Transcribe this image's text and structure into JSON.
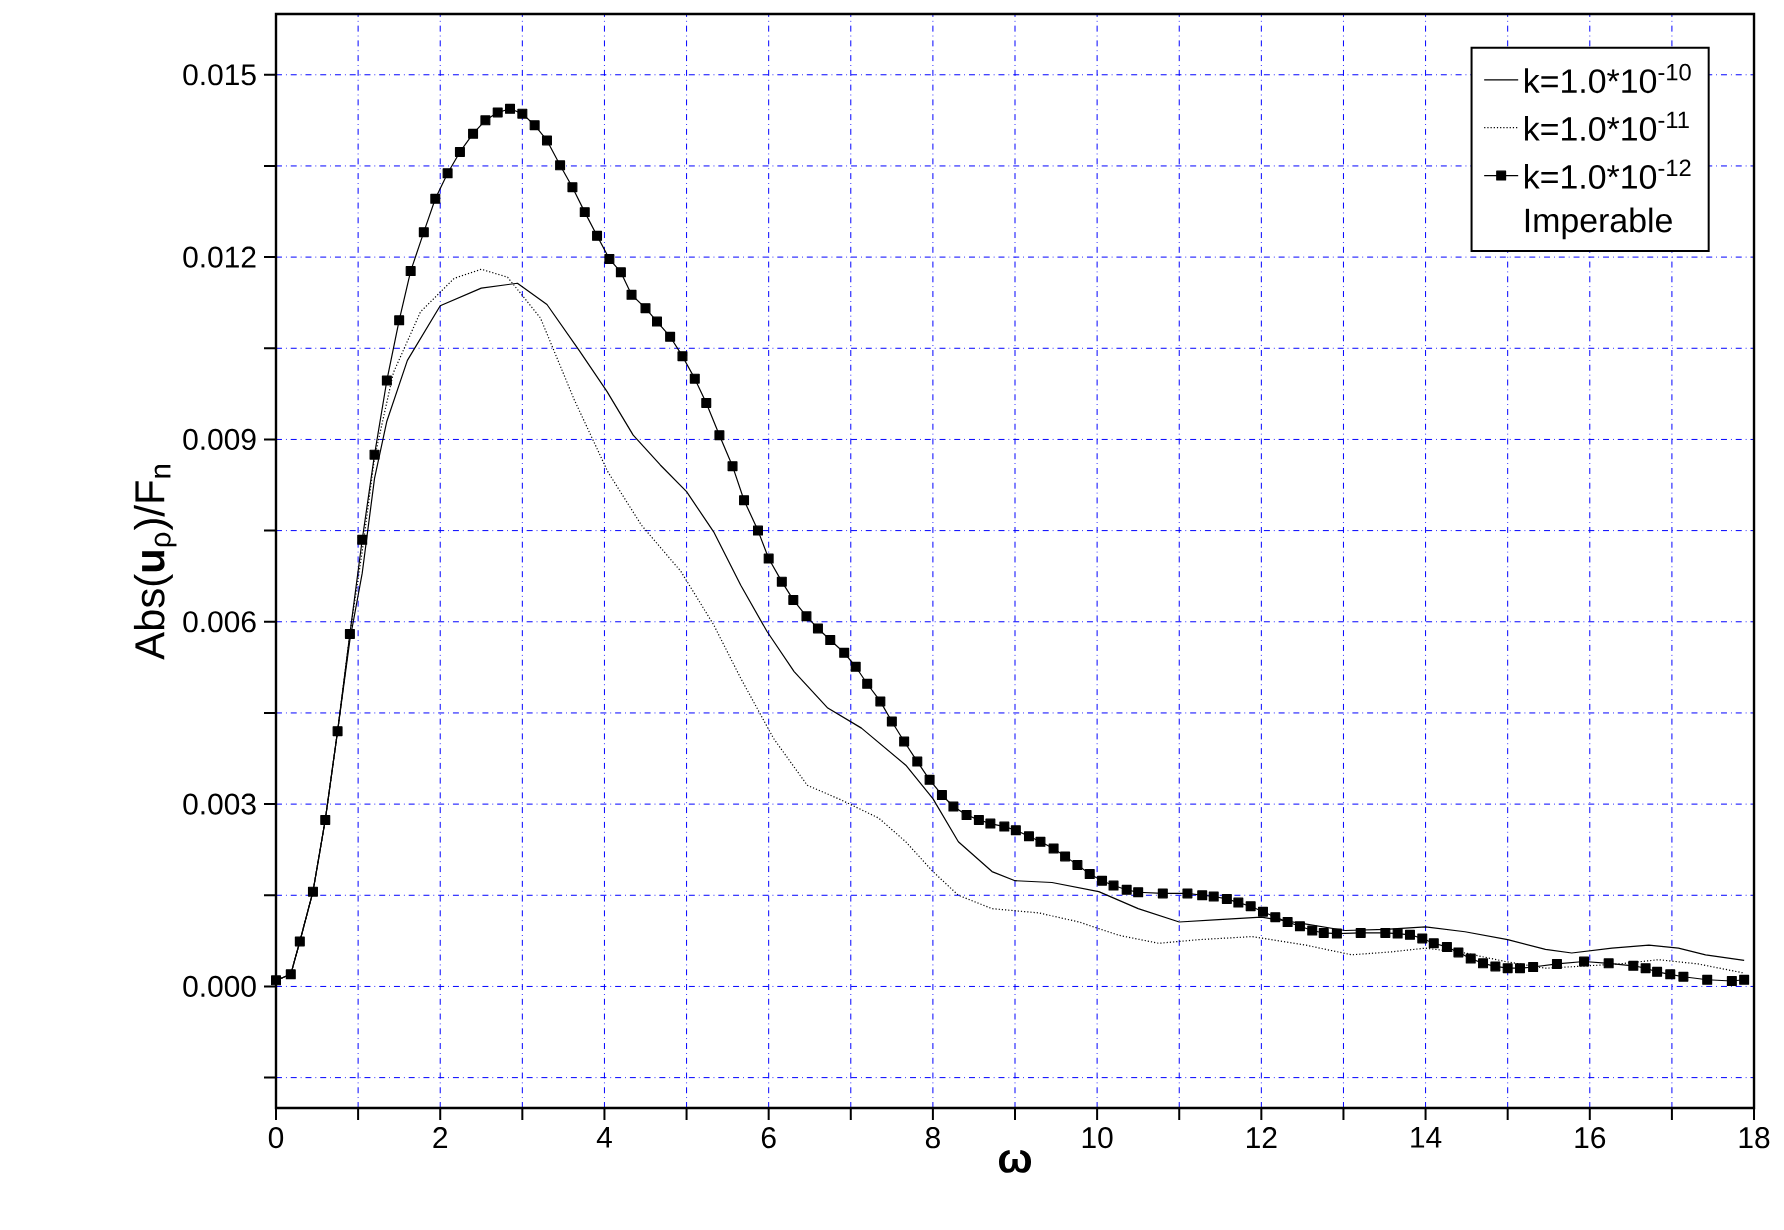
{
  "chart_data": {
    "type": "line",
    "xlabel": "**ω**",
    "ylabel": "Abs(**u**$_{ρ}$)/F$_{n}$",
    "annotations": [
      "Imperable"
    ],
    "xlim": [
      0,
      18
    ],
    "ylim": [
      -0.002,
      0.016
    ],
    "xticks": [
      0,
      {
        "value": 1,
        "label": null
      },
      2,
      {
        "value": 3,
        "label": null
      },
      4,
      {
        "value": 5,
        "label": null
      },
      6,
      {
        "value": 7,
        "label": null
      },
      8,
      {
        "value": 9,
        "label": null
      },
      10,
      {
        "value": 11,
        "label": null
      },
      12,
      {
        "value": 13,
        "label": null
      },
      14,
      {
        "value": 15,
        "label": null
      },
      16,
      {
        "value": 17,
        "label": null
      },
      18
    ],
    "yticks": [
      {
        "value": -0.0015,
        "label": null
      },
      {
        "value": 0,
        "label": "0.000"
      },
      {
        "value": 0.0015,
        "label": null
      },
      {
        "value": 0.003,
        "label": "0.003"
      },
      {
        "value": 0.0045,
        "label": null
      },
      {
        "value": 0.006,
        "label": "0.006"
      },
      {
        "value": 0.0075,
        "label": null
      },
      {
        "value": 0.009,
        "label": "0.009"
      },
      {
        "value": 0.0105,
        "label": null
      },
      {
        "value": 0.012,
        "label": "0.012"
      },
      {
        "value": 0.0135,
        "label": null
      },
      {
        "value": 0.015,
        "label": "0.015"
      }
    ],
    "grid": true,
    "legend": "top right",
    "series": [
      {
        "name": "k=1.0*10$^{-10}$",
        "color": "#000000",
        "line_style": "solid",
        "marker": "none",
        "x": [
          0,
          0.18,
          0.29,
          0.45,
          0.6,
          0.75,
          0.9,
          1.05,
          1.2,
          1.35,
          1.6,
          2.0,
          2.5,
          2.94,
          3.3,
          3.7,
          4.03,
          4.35,
          4.68,
          5.0,
          5.33,
          5.66,
          5.98,
          6.31,
          6.72,
          7.13,
          7.67,
          8.0,
          8.31,
          8.72,
          9.0,
          9.45,
          10.02,
          10.5,
          11.0,
          11.48,
          12.0,
          12.53,
          13.02,
          13.51,
          14.0,
          14.48,
          15.0,
          15.46,
          15.78,
          16.27,
          16.72,
          17.08,
          17.41,
          17.88
        ],
        "values": [
          0.0001,
          0.0002,
          0.00074,
          0.00156,
          0.00274,
          0.0042,
          0.0057,
          0.0068,
          0.00836,
          0.0093,
          0.0103,
          0.0112,
          0.01149,
          0.01157,
          0.01122,
          0.01045,
          0.00979,
          0.00907,
          0.00858,
          0.00814,
          0.00748,
          0.0066,
          0.00584,
          0.00518,
          0.00458,
          0.00425,
          0.00364,
          0.00309,
          0.00238,
          0.00189,
          0.00174,
          0.00171,
          0.00156,
          0.00128,
          0.00106,
          0.0011,
          0.00114,
          0.00103,
          0.00092,
          0.00094,
          0.00098,
          0.0009,
          0.00077,
          0.00061,
          0.00055,
          0.00063,
          0.00068,
          0.00063,
          0.00052,
          0.00043
        ]
      },
      {
        "name": "k=1.0*10$^{-11}$",
        "color": "#000000",
        "line_style": "dotted",
        "marker": "none",
        "x": [
          0,
          0.18,
          0.29,
          0.45,
          0.6,
          0.75,
          0.9,
          1.05,
          1.2,
          1.43,
          1.76,
          2.17,
          2.5,
          2.82,
          3.22,
          3.63,
          4.04,
          4.45,
          4.93,
          5.33,
          5.66,
          6.06,
          6.47,
          6.88,
          7.34,
          7.67,
          8.0,
          8.31,
          8.72,
          9.29,
          9.78,
          10.27,
          10.75,
          11.24,
          11.89,
          12.54,
          13.1,
          13.59,
          14.0,
          14.48,
          14.97,
          15.46,
          15.86,
          16.35,
          16.84,
          17.32,
          17.88
        ],
        "values": [
          0.0001,
          0.0002,
          0.00074,
          0.00156,
          0.00274,
          0.0042,
          0.0058,
          0.00716,
          0.0087,
          0.0101,
          0.0111,
          0.01165,
          0.0118,
          0.01167,
          0.011,
          0.00966,
          0.00847,
          0.00759,
          0.00683,
          0.00595,
          0.00507,
          0.00408,
          0.00331,
          0.00307,
          0.00277,
          0.00238,
          0.00189,
          0.0015,
          0.00128,
          0.00121,
          0.00106,
          0.00084,
          0.00071,
          0.00077,
          0.00082,
          0.00068,
          0.00052,
          0.00057,
          0.00063,
          0.00055,
          0.00041,
          0.0003,
          0.00033,
          0.00037,
          0.00044,
          0.00037,
          0.00022
        ]
      },
      {
        "name": "k=1.0*10$^{-12}$",
        "color": "#000000",
        "line_style": "solid",
        "marker": "square",
        "x": [
          0,
          0.18,
          0.29,
          0.45,
          0.6,
          0.75,
          0.9,
          1.05,
          1.2,
          1.35,
          1.5,
          1.64,
          1.8,
          1.94,
          2.09,
          2.24,
          2.4,
          2.55,
          2.7,
          2.85,
          3.0,
          3.15,
          3.3,
          3.46,
          3.61,
          3.76,
          3.91,
          4.06,
          4.2,
          4.33,
          4.5,
          4.64,
          4.8,
          4.95,
          5.1,
          5.24,
          5.4,
          5.56,
          5.7,
          5.87,
          6.0,
          6.16,
          6.3,
          6.46,
          6.6,
          6.75,
          6.92,
          7.06,
          7.2,
          7.36,
          7.5,
          7.65,
          7.81,
          7.96,
          8.11,
          8.25,
          8.41,
          8.56,
          8.7,
          8.87,
          9.01,
          9.17,
          9.31,
          9.47,
          9.61,
          9.76,
          9.91,
          10.06,
          10.2,
          10.36,
          10.5,
          10.8,
          11.1,
          11.28,
          11.42,
          11.58,
          11.72,
          11.87,
          12.02,
          12.17,
          12.32,
          12.47,
          12.62,
          12.76,
          12.92,
          13.21,
          13.51,
          13.66,
          13.81,
          13.96,
          14.1,
          14.26,
          14.4,
          14.55,
          14.7,
          14.85,
          15.0,
          15.15,
          15.31,
          15.6,
          15.93,
          16.23,
          16.53,
          16.68,
          16.82,
          16.98,
          17.14,
          17.43,
          17.73,
          17.88
        ],
        "values": [
          0.0001,
          0.0002,
          0.00074,
          0.00156,
          0.00274,
          0.0042,
          0.0058,
          0.00735,
          0.00875,
          0.00997,
          0.01096,
          0.01177,
          0.01241,
          0.01296,
          0.01338,
          0.01373,
          0.01403,
          0.01425,
          0.01438,
          0.01444,
          0.01436,
          0.01417,
          0.01392,
          0.01351,
          0.01315,
          0.01274,
          0.01235,
          0.01197,
          0.01175,
          0.01138,
          0.01116,
          0.01094,
          0.01069,
          0.01037,
          0.01,
          0.0096,
          0.00907,
          0.00856,
          0.008,
          0.0075,
          0.00704,
          0.00666,
          0.00636,
          0.00609,
          0.00589,
          0.0057,
          0.00549,
          0.00526,
          0.00498,
          0.00469,
          0.00436,
          0.00403,
          0.0037,
          0.0034,
          0.00315,
          0.00296,
          0.00282,
          0.00274,
          0.00268,
          0.00263,
          0.00257,
          0.00247,
          0.00238,
          0.00227,
          0.00214,
          0.002,
          0.00185,
          0.00174,
          0.00166,
          0.00159,
          0.00155,
          0.00153,
          0.00153,
          0.0015,
          0.00148,
          0.00144,
          0.00138,
          0.00132,
          0.00123,
          0.00114,
          0.00106,
          0.00099,
          0.00092,
          0.00088,
          0.00087,
          0.00088,
          0.00088,
          0.00087,
          0.00085,
          0.00079,
          0.00071,
          0.00065,
          0.00056,
          0.00046,
          0.00038,
          0.00033,
          0.0003,
          0.0003,
          0.00032,
          0.00037,
          0.00041,
          0.00038,
          0.00034,
          0.0003,
          0.00024,
          0.0002,
          0.00016,
          0.00011,
          9e-05,
          0.00011
        ]
      }
    ]
  }
}
